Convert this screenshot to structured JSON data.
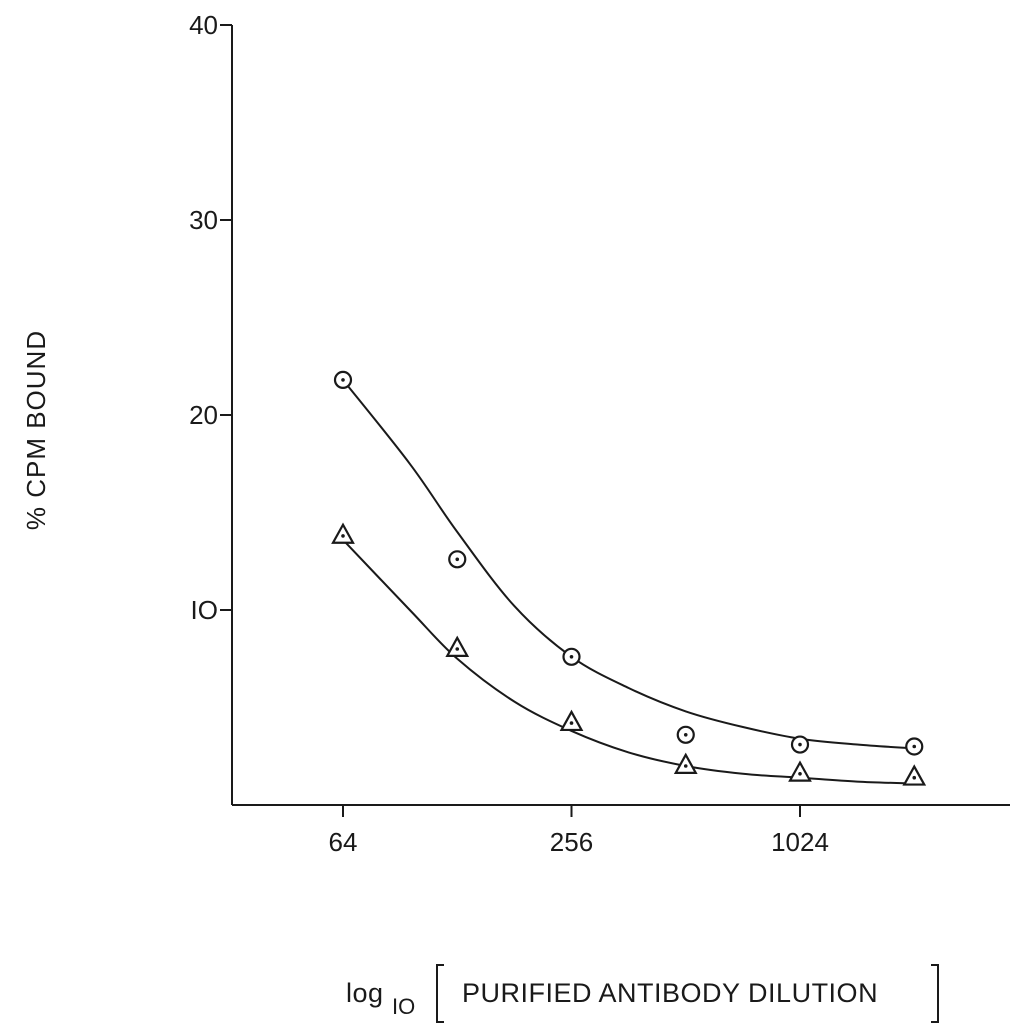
{
  "chart_data": {
    "type": "scatter",
    "x_scale": "log",
    "x_ticks": [
      64,
      256,
      1024
    ],
    "x_tick_labels": [
      "64",
      "256",
      "1024"
    ],
    "y_ticks": [
      10,
      20,
      30,
      40
    ],
    "y_tick_labels": [
      "IO",
      "20",
      "30",
      "40"
    ],
    "ylim": [
      0,
      40
    ],
    "xlim": [
      16,
      4096
    ],
    "ylabel": "% CPM BOUND",
    "xlabel_prefix": "log",
    "xlabel_subscript": "IO",
    "xlabel_text": "PURIFIED ANTIBODY DILUTION",
    "grid": false,
    "legend": "none",
    "series": [
      {
        "marker": "circle",
        "x": [
          64,
          128,
          256,
          512,
          1024,
          2048
        ],
        "y": [
          21.8,
          12.6,
          7.6,
          3.6,
          3.1,
          3.0
        ],
        "fit_curve": [
          [
            64,
            21.8
          ],
          [
            96,
            17.5
          ],
          [
            128,
            14.0
          ],
          [
            181,
            10.2
          ],
          [
            256,
            7.6
          ],
          [
            362,
            6.0
          ],
          [
            512,
            4.8
          ],
          [
            724,
            4.0
          ],
          [
            1024,
            3.4
          ],
          [
            1448,
            3.1
          ],
          [
            2048,
            2.9
          ]
        ]
      },
      {
        "marker": "triangle",
        "x": [
          64,
          128,
          256,
          512,
          1024,
          2048
        ],
        "y": [
          13.8,
          8.0,
          4.2,
          2.0,
          1.6,
          1.4
        ],
        "fit_curve": [
          [
            64,
            13.6
          ],
          [
            96,
            10.0
          ],
          [
            128,
            7.5
          ],
          [
            181,
            5.3
          ],
          [
            256,
            3.8
          ],
          [
            362,
            2.7
          ],
          [
            512,
            2.0
          ],
          [
            724,
            1.6
          ],
          [
            1024,
            1.4
          ],
          [
            1448,
            1.2
          ],
          [
            2048,
            1.1
          ]
        ]
      }
    ]
  }
}
